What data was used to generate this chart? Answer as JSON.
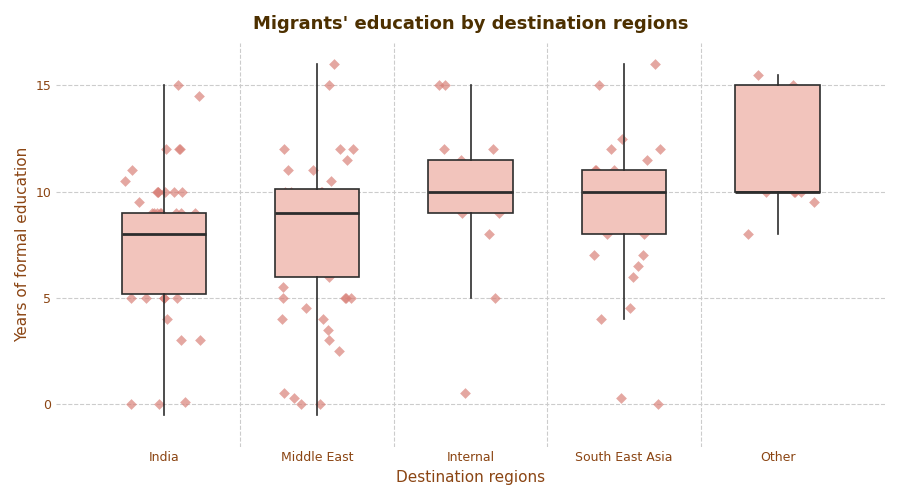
{
  "title": "Migrants' education by destination regions",
  "xlabel": "Destination regions",
  "ylabel": "Years of formal education",
  "categories": [
    "India",
    "Middle East",
    "Internal",
    "South East Asia",
    "Other"
  ],
  "box_stats": [
    {
      "med": 8.0,
      "q1": 5.2,
      "q3": 9.0,
      "whislo": -0.5,
      "whishi": 15.0,
      "fliers": []
    },
    {
      "med": 9.0,
      "q1": 6.0,
      "q3": 10.1,
      "whislo": -0.5,
      "whishi": 16.0,
      "fliers": []
    },
    {
      "med": 10.0,
      "q1": 9.0,
      "q3": 11.5,
      "whislo": 5.0,
      "whishi": 15.0,
      "fliers": []
    },
    {
      "med": 10.0,
      "q1": 8.0,
      "q3": 11.0,
      "whislo": 4.0,
      "whishi": 16.0,
      "fliers": []
    },
    {
      "med": 10.0,
      "q1": 10.0,
      "q3": 15.0,
      "whislo": 8.0,
      "whishi": 15.5,
      "fliers": []
    }
  ],
  "jitter_data": {
    "India": [
      0,
      0.1,
      0,
      3,
      3,
      4,
      5,
      5,
      5,
      5,
      5,
      5.5,
      6,
      6,
      6,
      6,
      6.5,
      7,
      7,
      7,
      7,
      7,
      7,
      7.5,
      7.5,
      7.5,
      8,
      8,
      8,
      8,
      8,
      8,
      8,
      8,
      8,
      8,
      8,
      8.5,
      8.5,
      8.5,
      9,
      9,
      9,
      9,
      9,
      9,
      9,
      9,
      9.5,
      10,
      10,
      10,
      10,
      10,
      10,
      10.5,
      11,
      12,
      12,
      12,
      14.5,
      15
    ],
    "Middle East": [
      0,
      0,
      0.3,
      0.5,
      2.5,
      3,
      3.5,
      4,
      4,
      4.5,
      5,
      5,
      5,
      5,
      5.5,
      6,
      7,
      7,
      7,
      7,
      7.5,
      8,
      8,
      8,
      8,
      8.5,
      9,
      9,
      9,
      9,
      9,
      9.5,
      10,
      10,
      10,
      10,
      10.5,
      11,
      11,
      11.5,
      12,
      12,
      12,
      15,
      16
    ],
    "Internal": [
      0.5,
      5,
      8,
      9,
      9,
      9.5,
      10,
      10,
      10,
      10,
      10.5,
      10.5,
      11,
      11,
      11,
      11,
      11.5,
      12,
      12,
      15,
      15
    ],
    "South East Asia": [
      0,
      0.3,
      4,
      4.5,
      6,
      6.5,
      7,
      7,
      8,
      8,
      8.5,
      9,
      9,
      9.5,
      10,
      10,
      10,
      10,
      10,
      10.5,
      10.5,
      11,
      11,
      11,
      11.5,
      12,
      12,
      12.5,
      15,
      16
    ],
    "Other": [
      8,
      9.5,
      10,
      10,
      10,
      10,
      10.5,
      10.5,
      15,
      15.5
    ]
  },
  "ylim": [
    -2,
    17
  ],
  "yticks": [
    0,
    5,
    10,
    15
  ],
  "box_fill_color": "#f2c4bc",
  "box_edge_color": "#2d2d2d",
  "jitter_color": "#d9827a",
  "median_color": "#2d2d2d",
  "whisker_color": "#2d2d2d",
  "grid_color": "#cccccc",
  "title_color": "#4d3000",
  "label_color": "#8b4513",
  "tick_color": "#8b4513",
  "background_color": "#ffffff",
  "title_fontsize": 13,
  "axis_label_fontsize": 11,
  "tick_fontsize": 9,
  "jitter_alpha": 0.7,
  "jitter_size": 30,
  "box_width": 0.55,
  "jitter_spread": 0.25
}
